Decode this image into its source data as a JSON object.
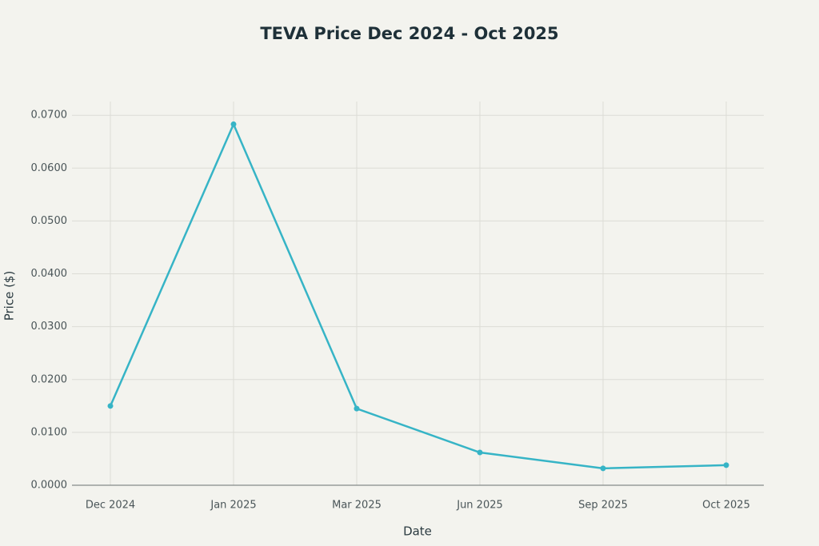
{
  "chart_data": {
    "type": "line",
    "title": "TEVA Price Dec 2024 - Oct 2025",
    "x_label": "Date",
    "y_label": "Price ($)",
    "categories": [
      "Dec 2024",
      "Jan 2025",
      "Mar 2025",
      "Jun 2025",
      "Sep 2025",
      "Oct 2025"
    ],
    "series": [
      {
        "name": "TEVA",
        "color": "#36b4c6",
        "values": [
          0.015,
          0.0683,
          0.0145,
          0.0062,
          0.0032,
          0.0038
        ]
      }
    ],
    "ylim": [
      0,
      0.0726
    ],
    "yticks": [
      {
        "value": 0,
        "label": "0.0000"
      },
      {
        "value": 0.01,
        "label": "0.0100"
      },
      {
        "value": 0.02,
        "label": "0.0200"
      },
      {
        "value": 0.03,
        "label": "0.0300"
      },
      {
        "value": 0.04,
        "label": "0.0400"
      },
      {
        "value": 0.05,
        "label": "0.0500"
      },
      {
        "value": 0.06,
        "label": "0.0600"
      },
      {
        "value": 0.07,
        "label": "0.0700"
      }
    ],
    "grid": true
  }
}
